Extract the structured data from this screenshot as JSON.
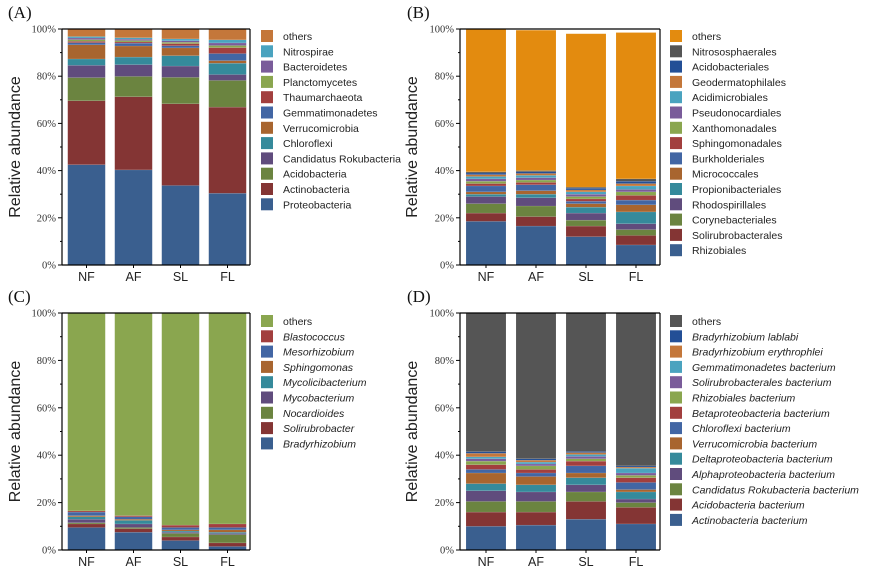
{
  "chart_data": [
    {
      "panel_label": "(A)",
      "type": "bar",
      "stacked": true,
      "ylabel": "Relative abundance",
      "xlabel": "",
      "ylim": [
        0,
        100
      ],
      "yticks": [
        "0%",
        "20%",
        "40%",
        "60%",
        "80%",
        "100%"
      ],
      "categories": [
        "NF",
        "AF",
        "SL",
        "FL"
      ],
      "legend_italic": false,
      "series": [
        {
          "name": "Proteobacteria",
          "color": "#3a5f8f",
          "values": [
            42.5,
            40.3,
            33.7,
            30.4
          ]
        },
        {
          "name": "Actinobacteria",
          "color": "#843534",
          "values": [
            27.1,
            31.0,
            34.6,
            36.5
          ]
        },
        {
          "name": "Acidobacteria",
          "color": "#6b8440",
          "values": [
            9.8,
            8.6,
            11.2,
            11.3
          ]
        },
        {
          "name": "Candidatus Rokubacteria",
          "color": "#604c7d",
          "values": [
            5.2,
            5.0,
            4.8,
            2.5
          ]
        },
        {
          "name": "Chloroflexi",
          "color": "#358a9b",
          "values": [
            2.7,
            3.2,
            4.4,
            4.8
          ]
        },
        {
          "name": "Verrucomicrobia",
          "color": "#a8652f",
          "values": [
            6.0,
            4.7,
            3.3,
            1.1
          ]
        },
        {
          "name": "Gemmatimonadetes",
          "color": "#4266a4",
          "values": [
            0.9,
            1.2,
            0.9,
            3.0
          ]
        },
        {
          "name": "Thaumarchaeota",
          "color": "#a23f3e",
          "values": [
            0.6,
            0.5,
            0.9,
            2.5
          ]
        },
        {
          "name": "Planctomycetes",
          "color": "#8aa64f",
          "values": [
            0.7,
            0.6,
            0.6,
            0.9
          ]
        },
        {
          "name": "Bacteroidetes",
          "color": "#7a5c9a",
          "values": [
            0.7,
            0.6,
            0.6,
            1.1
          ]
        },
        {
          "name": "Nitrospirae",
          "color": "#4aa3bf",
          "values": [
            0.6,
            0.6,
            0.8,
            1.3
          ]
        },
        {
          "name": "others",
          "color": "#c4773a",
          "values": [
            3.2,
            3.7,
            4.2,
            4.6
          ]
        }
      ]
    },
    {
      "panel_label": "(B)",
      "type": "bar",
      "stacked": true,
      "ylabel": "Relative abundance",
      "xlabel": "",
      "ylim": [
        0,
        100
      ],
      "yticks": [
        "0%",
        "20%",
        "40%",
        "60%",
        "80%",
        "100%"
      ],
      "categories": [
        "NF",
        "AF",
        "SL",
        "FL"
      ],
      "legend_italic": false,
      "series": [
        {
          "name": "Rhizobiales",
          "color": "#3a5f8f",
          "values": [
            18.5,
            16.5,
            12.0,
            8.5
          ]
        },
        {
          "name": "Solirubrobacterales",
          "color": "#843534",
          "values": [
            3.5,
            4.0,
            4.5,
            4.0
          ]
        },
        {
          "name": "Corynebacteriales",
          "color": "#6b8440",
          "values": [
            4.0,
            4.5,
            2.5,
            2.5
          ]
        },
        {
          "name": "Rhodospirillales",
          "color": "#604c7d",
          "values": [
            3.0,
            3.5,
            3.0,
            2.5
          ]
        },
        {
          "name": "Propionibacteriales",
          "color": "#358a9b",
          "values": [
            1.0,
            1.5,
            2.5,
            5.0
          ]
        },
        {
          "name": "Micrococcales",
          "color": "#a8652f",
          "values": [
            1.0,
            1.5,
            1.5,
            3.0
          ]
        },
        {
          "name": "Burkholderiales",
          "color": "#4266a4",
          "values": [
            2.5,
            2.5,
            1.0,
            2.0
          ]
        },
        {
          "name": "Sphingomonadales",
          "color": "#a23f3e",
          "values": [
            1.0,
            1.0,
            1.0,
            2.0
          ]
        },
        {
          "name": "Xanthomonadales",
          "color": "#8aa64f",
          "values": [
            1.0,
            1.0,
            1.0,
            1.5
          ]
        },
        {
          "name": "Pseudonocardiales",
          "color": "#7a5c9a",
          "values": [
            1.0,
            1.0,
            1.0,
            1.0
          ]
        },
        {
          "name": "Acidimicrobiales",
          "color": "#4aa3bf",
          "values": [
            1.0,
            1.0,
            1.0,
            1.5
          ]
        },
        {
          "name": "Geodermatophilales",
          "color": "#c4773a",
          "values": [
            0.8,
            0.8,
            0.8,
            1.0
          ]
        },
        {
          "name": "Acidobacteriales",
          "color": "#234f96",
          "values": [
            0.7,
            0.7,
            0.7,
            1.0
          ]
        },
        {
          "name": "Nitrososphaerales",
          "color": "#555555",
          "values": [
            0.5,
            0.5,
            0.5,
            1.0
          ]
        },
        {
          "name": "others",
          "color": "#e38b0f",
          "values": [
            60.5,
            59.5,
            65.0,
            62.0
          ]
        }
      ]
    },
    {
      "panel_label": "(C)",
      "type": "bar",
      "stacked": true,
      "ylabel": "Relative abundance",
      "xlabel": "",
      "ylim": [
        0,
        100
      ],
      "yticks": [
        "0%",
        "20%",
        "40%",
        "60%",
        "80%",
        "100%"
      ],
      "categories": [
        "NF",
        "AF",
        "SL",
        "FL"
      ],
      "legend_italic": true,
      "series": [
        {
          "name": "Bradyrhizobium",
          "color": "#3a5f8f",
          "values": [
            9.5,
            7.5,
            4.0,
            1.5
          ]
        },
        {
          "name": "Solirubrobacter",
          "color": "#843534",
          "values": [
            1.5,
            1.5,
            1.5,
            1.5
          ]
        },
        {
          "name": "Nocardioides",
          "color": "#6b8440",
          "values": [
            0.5,
            0.5,
            1.5,
            3.5
          ]
        },
        {
          "name": "Mycobacterium",
          "color": "#604c7d",
          "values": [
            1.5,
            1.5,
            0.5,
            0.5
          ]
        },
        {
          "name": "Mycolicibacterium",
          "color": "#358a9b",
          "values": [
            1.0,
            1.5,
            0.5,
            0.5
          ]
        },
        {
          "name": "Sphingomonas",
          "color": "#a8652f",
          "values": [
            0.5,
            0.5,
            0.5,
            1.0
          ]
        },
        {
          "name": "Mesorhizobium",
          "color": "#4266a4",
          "values": [
            1.5,
            1.0,
            1.0,
            1.0
          ]
        },
        {
          "name": "Blastococcus",
          "color": "#a23f3e",
          "values": [
            0.5,
            0.5,
            1.0,
            1.5
          ]
        },
        {
          "name": "others",
          "color": "#8aa64f",
          "values": [
            83.5,
            85.5,
            89.5,
            89.0
          ]
        }
      ]
    },
    {
      "panel_label": "(D)",
      "type": "bar",
      "stacked": true,
      "ylabel": "Relative abundance",
      "xlabel": "",
      "ylim": [
        0,
        100
      ],
      "yticks": [
        "0%",
        "20%",
        "40%",
        "60%",
        "80%",
        "100%"
      ],
      "categories": [
        "NF",
        "AF",
        "SL",
        "FL"
      ],
      "legend_italic": true,
      "legend_italic_except": [
        "others"
      ],
      "series": [
        {
          "name": "Actinobacteria bacterium",
          "color": "#3a5f8f",
          "values": [
            10.0,
            10.5,
            13.0,
            11.0
          ]
        },
        {
          "name": "Acidobacteria bacterium",
          "color": "#843534",
          "values": [
            6.0,
            5.5,
            7.5,
            7.0
          ]
        },
        {
          "name": "Candidatus Rokubacteria bacterium",
          "color": "#6b8440",
          "values": [
            4.5,
            4.5,
            4.0,
            2.0
          ]
        },
        {
          "name": "Alphaproteobacteria bacterium",
          "color": "#604c7d",
          "values": [
            4.5,
            4.0,
            3.0,
            1.5
          ]
        },
        {
          "name": "Deltaproteobacteria bacterium",
          "color": "#358a9b",
          "values": [
            3.0,
            3.0,
            3.0,
            3.0
          ]
        },
        {
          "name": "Verrucomicrobia bacterium",
          "color": "#a8652f",
          "values": [
            4.5,
            3.5,
            2.0,
            1.0
          ]
        },
        {
          "name": "Chloroflexi bacterium",
          "color": "#4266a4",
          "values": [
            1.5,
            1.5,
            3.0,
            3.0
          ]
        },
        {
          "name": "Betaproteobacteria bacterium",
          "color": "#a23f3e",
          "values": [
            2.0,
            1.5,
            2.0,
            2.0
          ]
        },
        {
          "name": "Rhizobiales bacterium",
          "color": "#8aa64f",
          "values": [
            1.5,
            1.5,
            1.0,
            1.0
          ]
        },
        {
          "name": "Solirubrobacterales bacterium",
          "color": "#7a5c9a",
          "values": [
            1.0,
            0.8,
            1.0,
            1.0
          ]
        },
        {
          "name": "Gemmatimonadetes bacterium",
          "color": "#4aa3bf",
          "values": [
            0.8,
            0.8,
            0.8,
            2.0
          ]
        },
        {
          "name": "Bradyrhizobium erythrophlei",
          "color": "#c4773a",
          "values": [
            1.5,
            0.8,
            0.8,
            0.5
          ]
        },
        {
          "name": "Bradyrhizobium lablabi",
          "color": "#234f96",
          "values": [
            0.7,
            0.6,
            0.5,
            0.5
          ]
        },
        {
          "name": "others",
          "color": "#555555",
          "values": [
            58.5,
            61.5,
            58.4,
            64.5
          ]
        }
      ]
    }
  ]
}
